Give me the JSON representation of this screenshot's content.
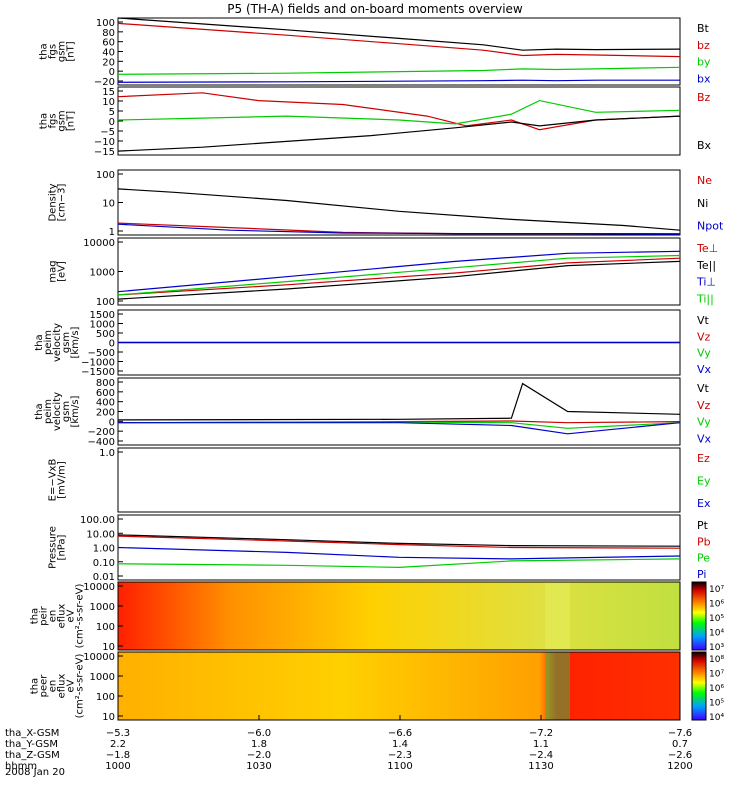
{
  "title": "P5 (TH-A) fields and on-board moments overview",
  "colors": {
    "black": "#000000",
    "red": "#cc0000",
    "green": "#00cc00",
    "blue": "#0000cc",
    "axis": "#000000"
  },
  "chart_data": [
    {
      "type": "line",
      "id": "fgs-gsm",
      "ylabel": [
        "tha",
        "fgs",
        "gsm",
        "[nT]"
      ],
      "ylim": [
        -25,
        100
      ],
      "yticks": [
        "100",
        "80",
        "60",
        "40",
        "20",
        "0",
        "−20"
      ],
      "series": [
        {
          "name": "Bt",
          "color": "black",
          "x": [
            0,
            0.3,
            0.5,
            0.65,
            0.72,
            0.78,
            0.85,
            1.0
          ],
          "y": [
            100,
            78,
            62,
            50,
            40,
            42,
            41,
            42
          ]
        },
        {
          "name": "bz",
          "color": "red",
          "x": [
            0,
            0.3,
            0.5,
            0.65,
            0.72,
            0.78,
            0.85,
            1.0
          ],
          "y": [
            90,
            68,
            52,
            40,
            30,
            32,
            31,
            28
          ]
        },
        {
          "name": "by",
          "color": "green",
          "x": [
            0,
            0.3,
            0.5,
            0.65,
            0.72,
            0.78,
            0.85,
            1.0
          ],
          "y": [
            -5,
            -3,
            0,
            2,
            5,
            4,
            5,
            8
          ]
        },
        {
          "name": "bx",
          "color": "blue",
          "x": [
            0,
            0.3,
            0.5,
            0.65,
            0.72,
            0.78,
            0.85,
            1.0
          ],
          "y": [
            -20,
            -19,
            -18,
            -17,
            -16,
            -17,
            -16,
            -16
          ]
        }
      ]
    },
    {
      "type": "line",
      "id": "fgs-gsm-detail",
      "ylabel": [
        "tha",
        "fgs",
        "gsm",
        "[nT]"
      ],
      "ylim": [
        -18,
        17
      ],
      "yticks": [
        "15",
        "10",
        "5",
        "0",
        "−5",
        "−10",
        "−15"
      ],
      "series": [
        {
          "name": "Bz",
          "color": "red",
          "x": [
            0,
            0.15,
            0.25,
            0.4,
            0.55,
            0.62,
            0.7,
            0.75,
            0.85,
            1.0
          ],
          "y": [
            12,
            14,
            10,
            8,
            2,
            -3,
            0,
            -5,
            0,
            2
          ]
        },
        {
          "name": "",
          "color": "green",
          "x": [
            0,
            0.15,
            0.3,
            0.5,
            0.6,
            0.7,
            0.75,
            0.85,
            1.0
          ],
          "y": [
            0,
            1,
            2,
            0,
            -2,
            3,
            10,
            4,
            5
          ]
        },
        {
          "name": "Bx",
          "color": "black",
          "x": [
            0,
            0.15,
            0.3,
            0.45,
            0.6,
            0.7,
            0.75,
            0.85,
            1.0
          ],
          "y": [
            -16,
            -14,
            -11,
            -8,
            -4,
            -1,
            -3,
            0,
            2
          ]
        }
      ]
    },
    {
      "type": "line",
      "id": "density",
      "ylabel": [
        "Density",
        "[cm−3]"
      ],
      "yscale": "log",
      "ylim": [
        0.8,
        200
      ],
      "yticks": [
        "100",
        "10",
        "1"
      ],
      "series": [
        {
          "name": "Ne",
          "color": "red",
          "x": [
            0,
            0.2,
            0.4,
            0.6,
            0.8,
            1.0
          ],
          "y": [
            2.2,
            1.5,
            1.0,
            0.9,
            0.9,
            0.9
          ]
        },
        {
          "name": "Ni",
          "color": "black",
          "x": [
            0,
            0.1,
            0.3,
            0.5,
            0.7,
            0.9,
            1.0
          ],
          "y": [
            40,
            30,
            15,
            6,
            3,
            1.8,
            1.2
          ]
        },
        {
          "name": "Npot",
          "color": "blue",
          "x": [
            0,
            0.2,
            0.4,
            0.6,
            0.8,
            1.0
          ],
          "y": [
            2,
            1.2,
            0.95,
            0.9,
            0.9,
            0.85
          ]
        }
      ]
    },
    {
      "type": "line",
      "id": "temperature",
      "ylabel": [
        "mag",
        "[eV]"
      ],
      "yscale": "log",
      "ylim": [
        100,
        10000
      ],
      "yticks": [
        "10000",
        "1000",
        "100"
      ],
      "series": [
        {
          "name": "Te⊥",
          "color": "red",
          "x": [
            0,
            0.3,
            0.6,
            0.8,
            1.0
          ],
          "y": [
            200,
            400,
            900,
            1800,
            2500
          ]
        },
        {
          "name": "Te||",
          "color": "black",
          "x": [
            0,
            0.3,
            0.6,
            0.8,
            1.0
          ],
          "y": [
            150,
            300,
            700,
            1500,
            2000
          ]
        },
        {
          "name": "Ti⊥",
          "color": "blue",
          "x": [
            0,
            0.3,
            0.6,
            0.8,
            1.0
          ],
          "y": [
            250,
            700,
            2000,
            3500,
            4000
          ]
        },
        {
          "name": "Ti||",
          "color": "green",
          "x": [
            0,
            0.3,
            0.6,
            0.8,
            1.0
          ],
          "y": [
            200,
            500,
            1300,
            2500,
            3000
          ]
        }
      ]
    },
    {
      "type": "line",
      "id": "peim-velocity-1",
      "ylabel": [
        "tha",
        "peim",
        "velocity",
        "gsm",
        "[km/s]"
      ],
      "ylim": [
        -1500,
        1500
      ],
      "yticks": [
        "1500",
        "1000",
        "500",
        "0",
        "−500",
        "−1000",
        "−1500"
      ],
      "series": [
        {
          "name": "Vt",
          "color": "black",
          "x": [
            0,
            1
          ],
          "y": [
            0,
            0
          ]
        },
        {
          "name": "Vz",
          "color": "red",
          "x": [
            0,
            1
          ],
          "y": [
            0,
            0
          ]
        },
        {
          "name": "Vy",
          "color": "green",
          "x": [
            0,
            1
          ],
          "y": [
            0,
            0
          ]
        },
        {
          "name": "Vx",
          "color": "blue",
          "x": [
            0,
            1
          ],
          "y": [
            0,
            0
          ]
        }
      ]
    },
    {
      "type": "line",
      "id": "peim-velocity-2",
      "ylabel": [
        "tha",
        "peim",
        "velocity",
        "gsm",
        "[km/s]"
      ],
      "ylim": [
        -400,
        800
      ],
      "yticks": [
        "800",
        "600",
        "400",
        "200",
        "0",
        "−200",
        "−400"
      ],
      "series": [
        {
          "name": "Vt",
          "color": "black",
          "x": [
            0,
            0.5,
            0.7,
            0.72,
            0.8,
            1.0
          ],
          "y": [
            50,
            60,
            80,
            700,
            200,
            150
          ]
        },
        {
          "name": "Vz",
          "color": "red",
          "x": [
            0,
            0.5,
            0.7,
            0.8,
            1.0
          ],
          "y": [
            0,
            20,
            30,
            0,
            20
          ]
        },
        {
          "name": "Vy",
          "color": "green",
          "x": [
            0,
            0.5,
            0.7,
            0.8,
            1.0
          ],
          "y": [
            0,
            10,
            0,
            -100,
            0
          ]
        },
        {
          "name": "Vx",
          "color": "blue",
          "x": [
            0,
            0.5,
            0.7,
            0.8,
            1.0
          ],
          "y": [
            0,
            0,
            -50,
            -200,
            0
          ]
        }
      ]
    },
    {
      "type": "line",
      "id": "e-vxb",
      "ylabel": [
        "E=−VxB",
        "[mV/m]"
      ],
      "ylim": [
        0,
        1
      ],
      "yticks": [
        "1.0"
      ],
      "series": [
        {
          "name": "Ez",
          "color": "red",
          "x": [],
          "y": []
        },
        {
          "name": "Ey",
          "color": "green",
          "x": [],
          "y": []
        },
        {
          "name": "Ex",
          "color": "blue",
          "x": [],
          "y": []
        }
      ]
    },
    {
      "type": "line",
      "id": "pressure",
      "ylabel": [
        "Pressure",
        "[nPa]"
      ],
      "yscale": "log",
      "ylim": [
        0.01,
        100
      ],
      "yticks": [
        "100.00",
        "10.00",
        "1.00",
        "0.10",
        "0.01"
      ],
      "series": [
        {
          "name": "Pt",
          "color": "black",
          "x": [
            0,
            0.3,
            0.5,
            0.7,
            1.0
          ],
          "y": [
            6,
            3,
            1.8,
            1.3,
            1.2
          ]
        },
        {
          "name": "Pb",
          "color": "red",
          "x": [
            0,
            0.3,
            0.5,
            0.7,
            1.0
          ],
          "y": [
            5,
            2.5,
            1.5,
            1.0,
            0.9
          ]
        },
        {
          "name": "Pe",
          "color": "green",
          "x": [
            0,
            0.3,
            0.5,
            0.7,
            1.0
          ],
          "y": [
            0.1,
            0.08,
            0.06,
            0.15,
            0.2
          ]
        },
        {
          "name": "Pi",
          "color": "blue",
          "x": [
            0,
            0.3,
            0.5,
            0.7,
            1.0
          ],
          "y": [
            1,
            0.5,
            0.25,
            0.2,
            0.3
          ]
        }
      ]
    },
    {
      "type": "heatmap",
      "id": "peir-en-eflux",
      "ylabel": [
        "tha",
        "peir",
        "en",
        "eflux",
        "eV",
        "(cm²-s-sr-eV)"
      ],
      "yscale": "log",
      "ylim": [
        10,
        10000
      ],
      "yticks": [
        "10000",
        "1000",
        "100",
        "10"
      ],
      "colorbar": [
        "10⁷",
        "10⁶",
        "10⁵",
        "10⁴",
        "10³"
      ]
    },
    {
      "type": "heatmap",
      "id": "peer-en-eflux",
      "ylabel": [
        "tha",
        "peer",
        "en",
        "eflux",
        "eV",
        "(cm²-s-sr-eV)"
      ],
      "yscale": "log",
      "ylim": [
        10,
        10000
      ],
      "yticks": [
        "10000",
        "1000",
        "100",
        "10"
      ],
      "colorbar": [
        "10⁸",
        "10⁷",
        "10⁶",
        "10⁵",
        "10⁴"
      ]
    }
  ],
  "xaxis": {
    "rows": [
      {
        "label": "tha_X-GSM",
        "values": [
          "−5.3",
          "−6.0",
          "−6.6",
          "−7.2",
          "−7.6"
        ]
      },
      {
        "label": "tha_Y-GSM",
        "values": [
          "2.2",
          "1.8",
          "1.4",
          "1.1",
          "0.7"
        ]
      },
      {
        "label": "tha_Z-GSM",
        "values": [
          "−1.8",
          "−2.0",
          "−2.3",
          "−2.4",
          "−2.6"
        ]
      },
      {
        "label": "hhmm",
        "values": [
          "1000",
          "1030",
          "1100",
          "1130",
          "1200"
        ]
      }
    ],
    "date": "2008 Jan 20"
  }
}
